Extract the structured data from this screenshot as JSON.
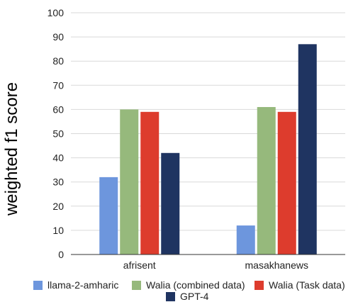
{
  "chart_data": {
    "type": "bar",
    "categories": [
      "afrisent",
      "masakhanews"
    ],
    "series": [
      {
        "name": "llama-2-amharic",
        "values": [
          32,
          12
        ],
        "color": "#6d96dd"
      },
      {
        "name": "Walia (combined data)",
        "values": [
          60,
          61
        ],
        "color": "#96b97c"
      },
      {
        "name": "Walia (Task data)",
        "values": [
          59,
          59
        ],
        "color": "#dd3c2d"
      },
      {
        "name": "GPT-4",
        "values": [
          42,
          87
        ],
        "color": "#1f3461"
      }
    ],
    "ylabel": "weighted f1 score",
    "xlabel": "",
    "ylim": [
      0,
      100
    ],
    "yticks": [
      0,
      10,
      20,
      30,
      40,
      50,
      60,
      70,
      80,
      90,
      100
    ],
    "grid": true,
    "legend_position": "bottom"
  }
}
